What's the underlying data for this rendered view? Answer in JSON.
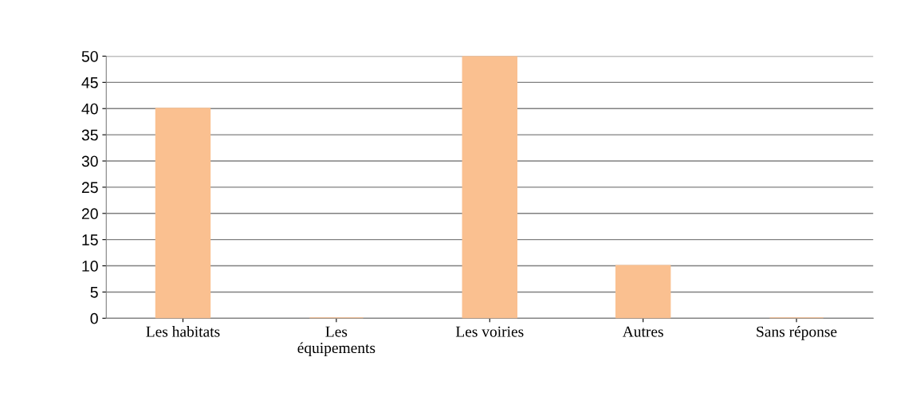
{
  "chart_data": {
    "type": "bar",
    "categories": [
      "Les habitats",
      "Les\néquipements",
      "Les voiries",
      "Autres",
      "Sans réponse"
    ],
    "values": [
      40,
      0,
      50,
      10,
      0
    ],
    "color": "#fac090",
    "ylim": [
      0,
      50
    ],
    "yticks": [
      0,
      5,
      10,
      15,
      20,
      25,
      30,
      35,
      40,
      45,
      50
    ],
    "grid": "y"
  }
}
